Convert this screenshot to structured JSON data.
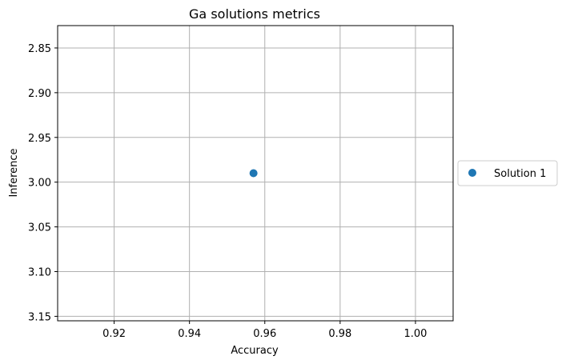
{
  "chart_data": {
    "type": "scatter",
    "title": "Ga solutions metrics",
    "xlabel": "Accuracy",
    "ylabel": "Inference",
    "xlim": [
      0.905,
      1.01
    ],
    "ylim": [
      3.155,
      2.825
    ],
    "y_inverted": true,
    "grid": true,
    "legend_position": "outside-right",
    "x_ticks": [
      {
        "value": 0.92,
        "label": "0.92"
      },
      {
        "value": 0.94,
        "label": "0.94"
      },
      {
        "value": 0.96,
        "label": "0.96"
      },
      {
        "value": 0.98,
        "label": "0.98"
      },
      {
        "value": 1.0,
        "label": "1.00"
      }
    ],
    "y_ticks": [
      {
        "value": 2.85,
        "label": "2.85"
      },
      {
        "value": 2.9,
        "label": "2.90"
      },
      {
        "value": 2.95,
        "label": "2.95"
      },
      {
        "value": 3.0,
        "label": "3.00"
      },
      {
        "value": 3.05,
        "label": "3.05"
      },
      {
        "value": 3.1,
        "label": "3.10"
      },
      {
        "value": 3.15,
        "label": "3.15"
      }
    ],
    "series": [
      {
        "name": "Solution 1",
        "color": "#1f77b4",
        "points": [
          {
            "x": 0.957,
            "y": 2.99
          }
        ]
      }
    ]
  }
}
